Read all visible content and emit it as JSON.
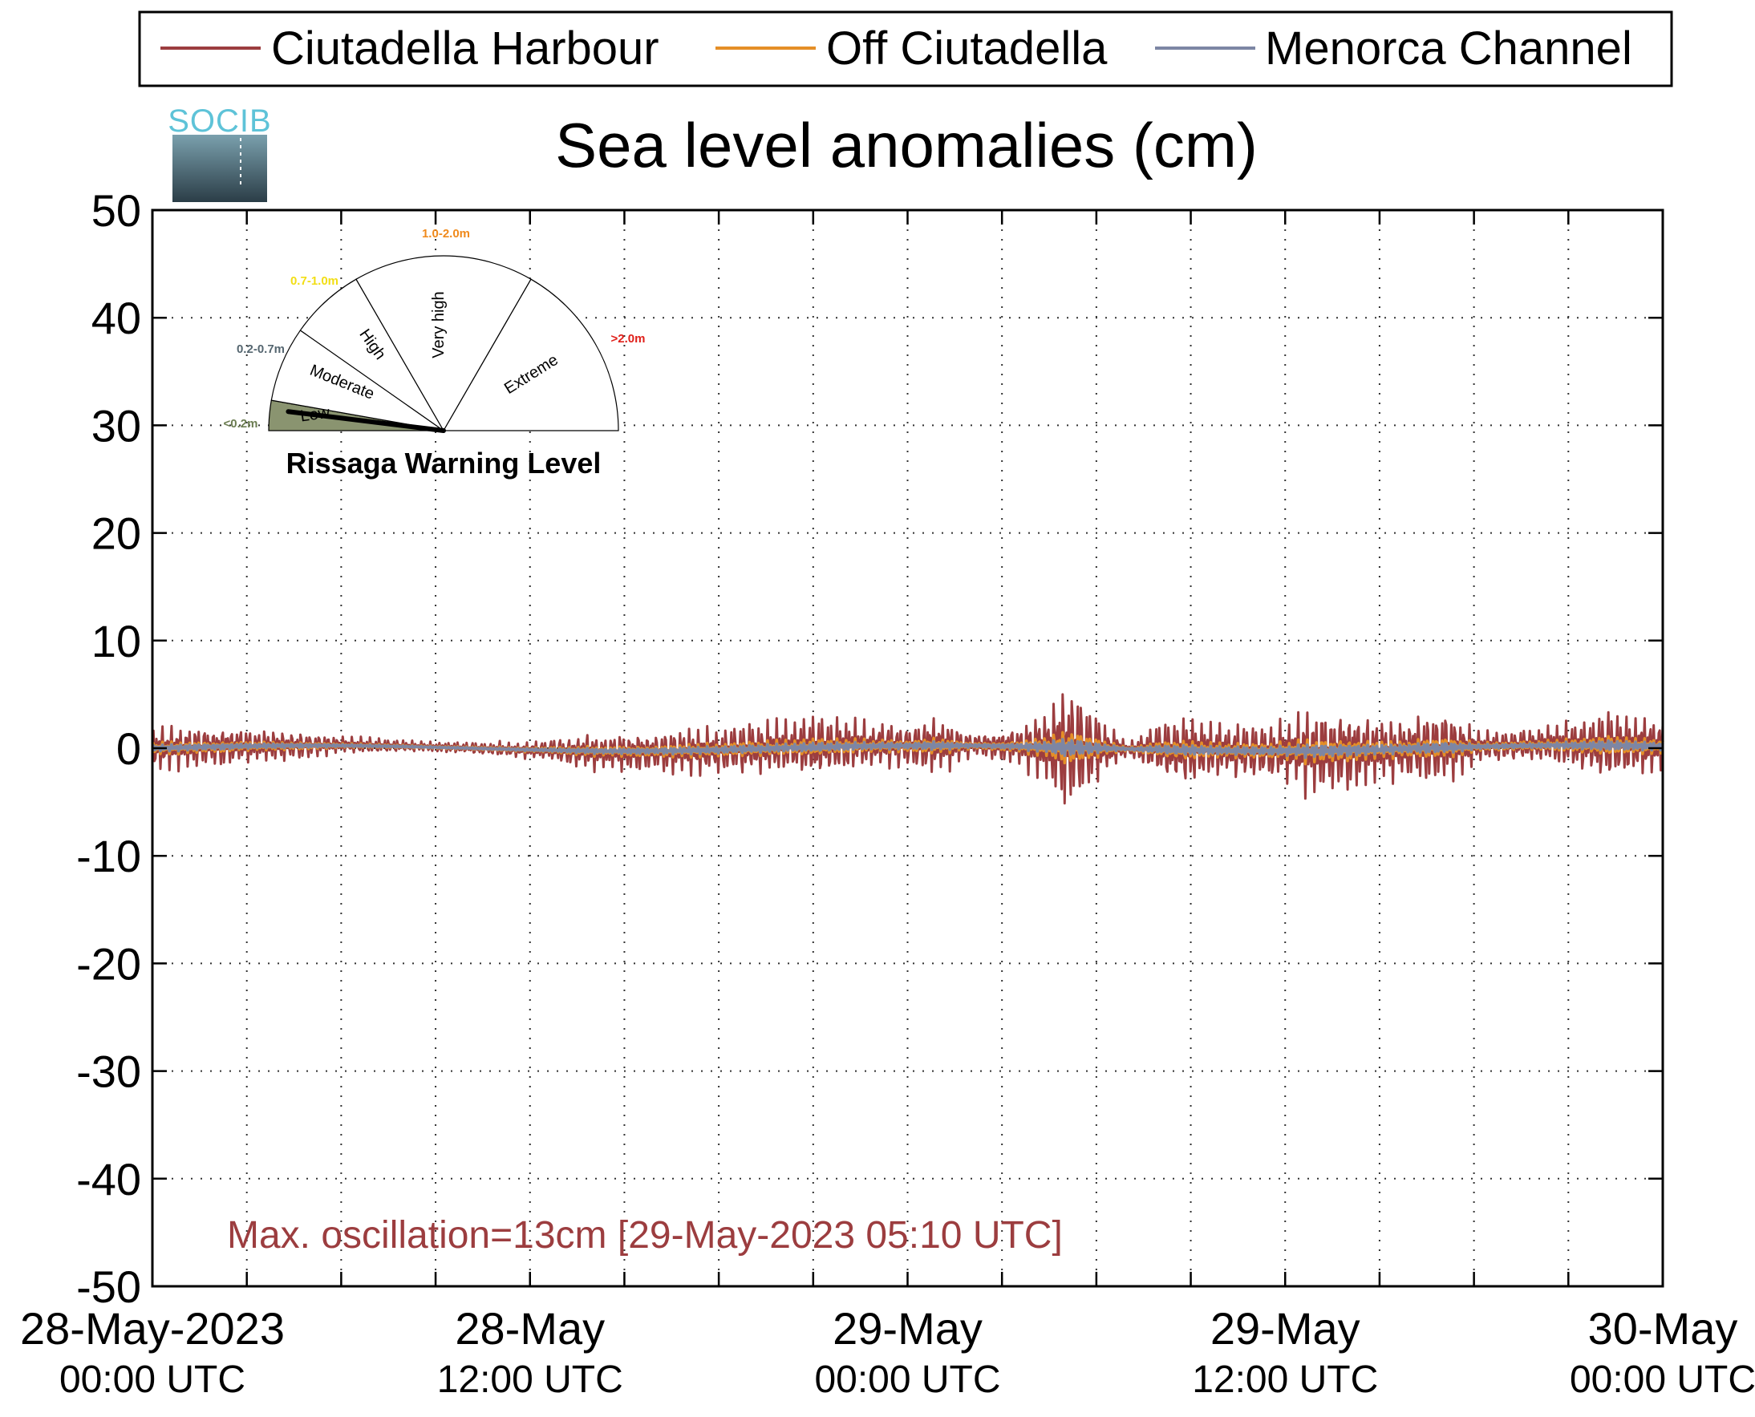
{
  "chart_data": {
    "type": "line",
    "title": "Sea level anomalies (cm)",
    "xlabel": "",
    "ylabel": "",
    "ylim": [
      -50,
      50
    ],
    "yticks": [
      50,
      40,
      30,
      20,
      10,
      0,
      -10,
      -20,
      -30,
      -40,
      -50
    ],
    "ytick_labels": [
      "50",
      "40",
      "30",
      "20",
      "10",
      "0",
      "-10",
      "-20",
      "-30",
      "-40",
      "-50"
    ],
    "xlim_hours": [
      0,
      48
    ],
    "x_minor_tick_hours": 3,
    "grid": true,
    "legend_position": "top",
    "xticks": [
      {
        "hour": 0,
        "line1": "28-May-2023",
        "line2": "00:00 UTC"
      },
      {
        "hour": 12,
        "line1": "28-May",
        "line2": "12:00 UTC"
      },
      {
        "hour": 24,
        "line1": "29-May",
        "line2": "00:00 UTC"
      },
      {
        "hour": 36,
        "line1": "29-May",
        "line2": "12:00 UTC"
      },
      {
        "hour": 48,
        "line1": "30-May",
        "line2": "00:00 UTC"
      }
    ],
    "series": [
      {
        "name": "Ciutadella Harbour",
        "color": "#9c3d3f",
        "amplitude_envelope": [
          [
            0,
            2
          ],
          [
            2,
            1.8
          ],
          [
            4,
            1.4
          ],
          [
            6,
            0.8
          ],
          [
            8,
            0.5
          ],
          [
            10,
            0.5
          ],
          [
            12,
            0.8
          ],
          [
            14,
            1.6
          ],
          [
            16,
            1.9
          ],
          [
            18,
            2.2
          ],
          [
            20,
            2.3
          ],
          [
            21,
            2.8
          ],
          [
            22,
            2.3
          ],
          [
            24,
            2.0
          ],
          [
            25,
            3.0
          ],
          [
            26,
            1.0
          ],
          [
            27.5,
            1.8
          ],
          [
            28.6,
            4.3
          ],
          [
            29.2,
            6.0
          ],
          [
            30,
            3.2
          ],
          [
            31,
            0.6
          ],
          [
            32,
            2.5
          ],
          [
            33,
            3.2
          ],
          [
            34,
            2.4
          ],
          [
            35,
            2.4
          ],
          [
            36,
            2.8
          ],
          [
            37,
            4.3
          ],
          [
            38,
            3.6
          ],
          [
            39,
            2.8
          ],
          [
            40,
            3.0
          ],
          [
            41,
            3.8
          ],
          [
            42,
            1.5
          ],
          [
            44,
            1.5
          ],
          [
            45,
            2.0
          ],
          [
            46,
            3.0
          ],
          [
            47,
            3.0
          ],
          [
            48,
            2.8
          ]
        ],
        "max_cm": 6,
        "min_cm": -6
      },
      {
        "name": "Off Ciutadella",
        "color": "#e58f27",
        "amplitude_factor": 0.28
      },
      {
        "name": "Menorca Channel",
        "color": "#7d86a4",
        "amplitude_factor": 0.15
      }
    ],
    "annotation": "Max. oscillation=13cm [29-May-2023 05:10 UTC]",
    "annotation_color": "#9c3d3f",
    "logo_text": "SOCIB",
    "gauge": {
      "title": "Rissaga Warning Level",
      "current_level": "Low",
      "sectors": [
        {
          "label": "Low",
          "range": "<0.2m",
          "color": "#8a9470",
          "range_color": "#6c7d52"
        },
        {
          "label": "Moderate",
          "range": "0.2-0.7m",
          "color": "#ffffff",
          "range_color": "#556670"
        },
        {
          "label": "High",
          "range": "0.7-1.0m",
          "color": "#ffffff",
          "range_color": "#f2de14"
        },
        {
          "label": "Very high",
          "range": "1.0-2.0m",
          "color": "#ffffff",
          "range_color": "#f08a1c"
        },
        {
          "label": "Extreme",
          "range": ">2.0m",
          "color": "#ffffff",
          "range_color": "#e0201a"
        }
      ]
    }
  }
}
